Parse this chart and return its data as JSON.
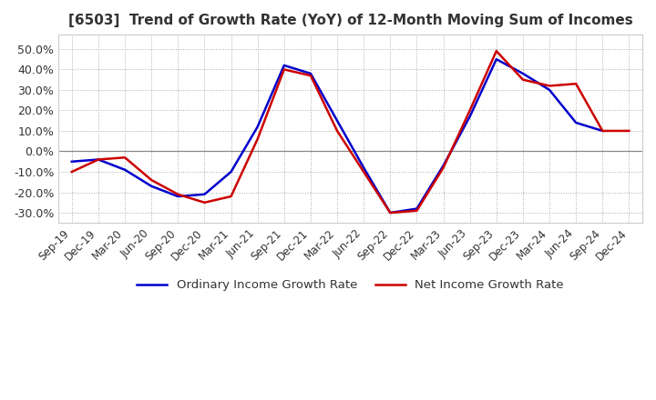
{
  "title": "[6503]  Trend of Growth Rate (YoY) of 12-Month Moving Sum of Incomes",
  "title_fontsize": 11,
  "ylim": [
    -0.35,
    0.57
  ],
  "yticks": [
    -0.3,
    -0.2,
    -0.1,
    0.0,
    0.1,
    0.2,
    0.3,
    0.4,
    0.5
  ],
  "background_color": "#ffffff",
  "grid_color": "#aaaaaa",
  "zero_line_color": "#888888",
  "ordinary_color": "#0000cc",
  "net_color": "#cc0000",
  "legend_labels": [
    "Ordinary Income Growth Rate",
    "Net Income Growth Rate"
  ],
  "x_labels": [
    "Sep-19",
    "Dec-19",
    "Mar-20",
    "Jun-20",
    "Sep-20",
    "Dec-20",
    "Mar-21",
    "Jun-21",
    "Sep-21",
    "Dec-21",
    "Mar-22",
    "Jun-22",
    "Sep-22",
    "Dec-22",
    "Mar-23",
    "Jun-23",
    "Sep-23",
    "Dec-23",
    "Mar-24",
    "Jun-24",
    "Sep-24",
    "Dec-24"
  ],
  "ordinary_income_growth": [
    -0.05,
    -0.04,
    -0.09,
    -0.17,
    -0.22,
    -0.21,
    -0.1,
    0.12,
    0.42,
    0.38,
    0.15,
    -0.08,
    -0.3,
    -0.28,
    -0.07,
    0.17,
    0.45,
    0.38,
    0.3,
    0.14,
    0.1,
    null
  ],
  "net_income_growth": [
    -0.1,
    -0.04,
    -0.03,
    -0.14,
    -0.21,
    -0.25,
    -0.22,
    0.06,
    0.4,
    0.37,
    0.1,
    -0.1,
    -0.3,
    -0.29,
    -0.08,
    0.2,
    0.49,
    0.35,
    0.32,
    0.33,
    0.1,
    0.1
  ]
}
